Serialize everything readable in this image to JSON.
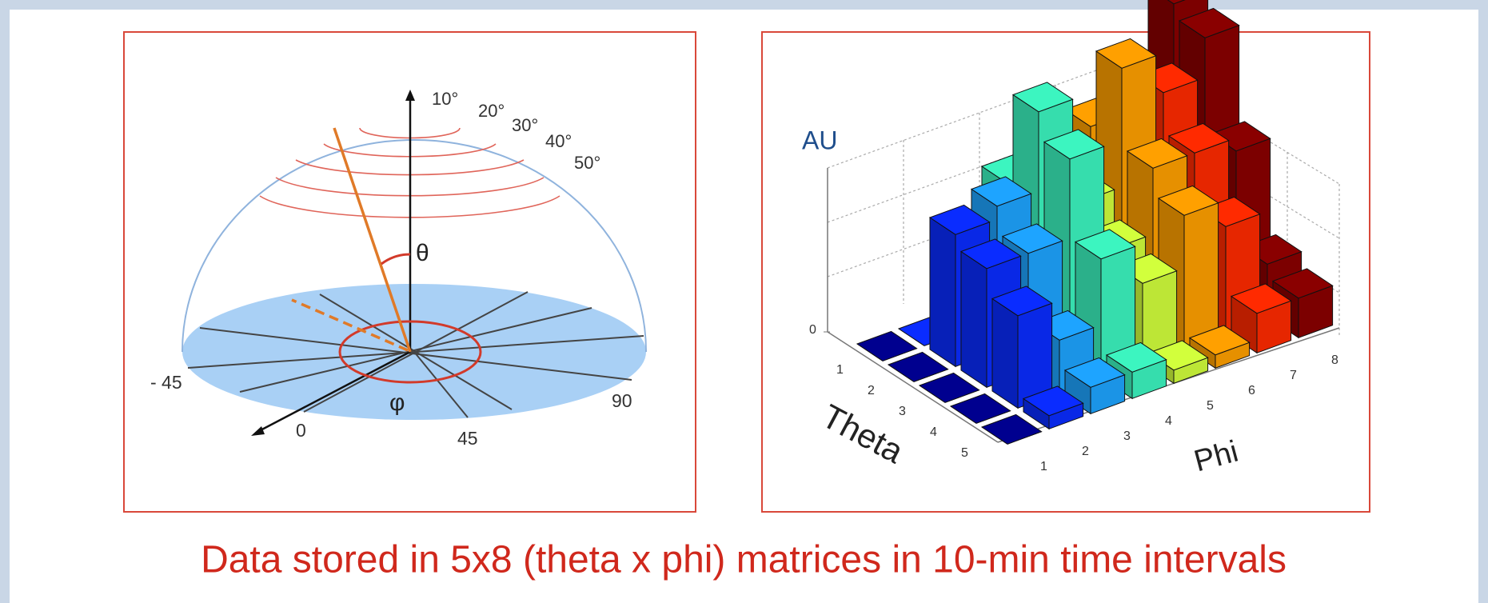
{
  "hemisphere": {
    "elevation_labels": [
      "10°",
      "20°",
      "30°",
      "40°",
      "50°"
    ],
    "theta_symbol": "θ",
    "phi_symbol": "φ",
    "azimuth_labels": [
      "- 45",
      "0",
      "45",
      "90"
    ]
  },
  "histogram": {
    "type": "bar3d",
    "z_label": "AU",
    "zlim": [
      0,
      1
    ],
    "zticks": [
      0
    ],
    "theta_label": "Theta",
    "phi_label": "Phi",
    "theta_ticks": [
      1,
      2,
      3,
      4,
      5
    ],
    "phi_ticks": [
      1,
      2,
      3,
      4,
      5,
      6,
      7,
      8
    ],
    "colors": [
      "#00008f",
      "#0a2cff",
      "#1ea4ff",
      "#3cf5c0",
      "#d2ff3c",
      "#ffa000",
      "#ff2a00",
      "#8a0000"
    ],
    "values": [
      [
        0,
        0,
        0.35,
        0.5,
        0.3,
        0.6,
        0.6,
        0.95
      ],
      [
        0,
        0.5,
        0.55,
        0.85,
        0.45,
        0.9,
        0.75,
        0.9
      ],
      [
        0,
        0.45,
        0.45,
        0.75,
        0.35,
        0.6,
        0.6,
        0.55
      ],
      [
        0,
        0.35,
        0.2,
        0.45,
        0.3,
        0.5,
        0.4,
        0.2
      ],
      [
        0,
        0.05,
        0.1,
        0.1,
        0.05,
        0.05,
        0.15,
        0.15
      ]
    ]
  },
  "caption": "Data stored in 5x8 (theta x phi) matrices in 10-min time intervals"
}
